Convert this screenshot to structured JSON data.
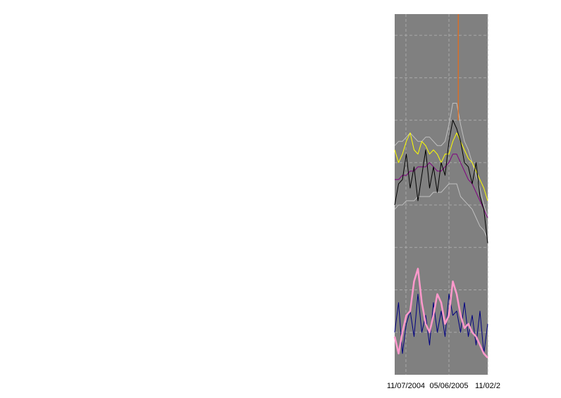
{
  "chart_data": {
    "type": "line",
    "background": "#808080",
    "grid": true,
    "xlim": [
      0,
      24
    ],
    "ylim": [
      0,
      8.5
    ],
    "xticks": [
      {
        "value": 2.9,
        "label": "11/07/2004"
      },
      {
        "value": 14,
        "label": "05/06/2005"
      },
      {
        "value": 24,
        "label": "11/02/2"
      }
    ],
    "yticks": [
      1,
      2,
      3,
      4,
      5,
      6,
      7,
      8
    ],
    "x": [
      0,
      1,
      2,
      3,
      4,
      5,
      6,
      7,
      8,
      9,
      10,
      11,
      12,
      13,
      14,
      15,
      16,
      17,
      18,
      19,
      20,
      21,
      22,
      23,
      24
    ],
    "series": [
      {
        "color": "#c0c0c0",
        "values": [
          5.4,
          5.5,
          5.5,
          5.6,
          5.7,
          5.6,
          5.5,
          5.5,
          5.6,
          5.6,
          5.5,
          5.4,
          5.4,
          5.5,
          5.9,
          6.4,
          6.4,
          5.9,
          5.5,
          5.3,
          5.0,
          4.7,
          4.4,
          4.0,
          3.7
        ]
      },
      {
        "color": "#c0c0c0",
        "values": [
          3.9,
          4.0,
          4.0,
          4.1,
          4.1,
          4.1,
          4.2,
          4.2,
          4.2,
          4.2,
          4.3,
          4.3,
          4.3,
          4.4,
          4.5,
          4.5,
          4.5,
          4.2,
          4.1,
          4.0,
          3.9,
          3.7,
          3.5,
          3.4,
          3.2
        ]
      },
      {
        "color": "#ffff00",
        "values": [
          5.3,
          5.0,
          5.2,
          5.5,
          5.7,
          5.3,
          5.2,
          5.5,
          5.4,
          5.2,
          5.3,
          5.2,
          5.0,
          5.2,
          5.2,
          5.5,
          5.7,
          5.5,
          5.3,
          5.1,
          5.0,
          4.8,
          4.6,
          4.4,
          4.1
        ]
      },
      {
        "color": "#800080",
        "values": [
          4.6,
          4.6,
          4.7,
          4.7,
          4.8,
          4.8,
          4.9,
          4.9,
          4.9,
          5.0,
          4.9,
          4.8,
          4.8,
          4.9,
          5.0,
          5.2,
          5.2,
          5.0,
          4.8,
          4.6,
          4.5,
          4.3,
          4.1,
          3.9,
          3.7
        ]
      },
      {
        "color": "#000000",
        "values": [
          4.0,
          4.5,
          4.6,
          5.2,
          4.4,
          4.9,
          4.1,
          4.7,
          5.3,
          4.4,
          4.9,
          4.3,
          5.0,
          4.7,
          5.5,
          6.0,
          5.8,
          5.5,
          5.0,
          4.9,
          4.5,
          5.0,
          4.2,
          3.9,
          3.1
        ]
      },
      {
        "color": "#ff6600",
        "x": [
          16.4,
          16.4
        ],
        "values": [
          6.0,
          8.5
        ]
      },
      {
        "color": "#000080",
        "values": [
          1.0,
          1.7,
          0.5,
          1.2,
          1.5,
          0.9,
          1.9,
          1.0,
          1.4,
          0.7,
          1.7,
          1.0,
          1.5,
          0.9,
          1.9,
          1.4,
          1.5,
          1.0,
          1.7,
          0.9,
          1.4,
          0.7,
          1.5,
          0.5,
          1.2
        ]
      },
      {
        "color": "#ff99cc",
        "width": 2.5,
        "values": [
          0.9,
          0.5,
          1.0,
          1.4,
          1.5,
          2.2,
          2.5,
          1.7,
          1.2,
          1.0,
          1.4,
          1.9,
          1.7,
          1.2,
          1.4,
          2.2,
          1.9,
          1.4,
          1.1,
          1.2,
          1.0,
          0.9,
          0.7,
          0.5,
          0.4
        ]
      }
    ]
  }
}
